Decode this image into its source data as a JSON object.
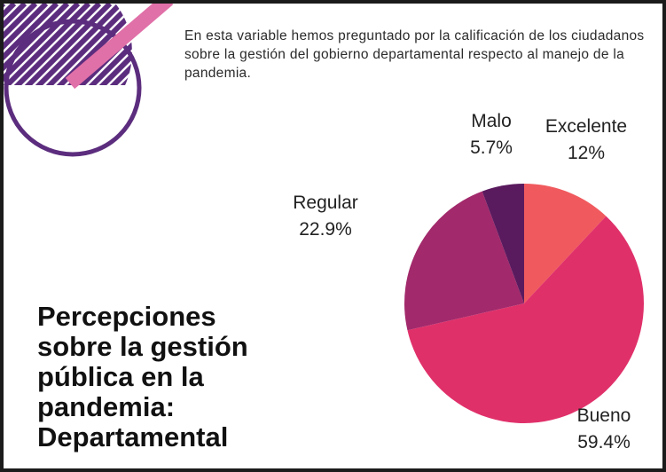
{
  "intro_text": "En esta variable hemos preguntado por la calificación de los ciudadanos sobre la gestión del gobierno departamental respecto al manejo de la pandemia.",
  "title_lines": [
    "Percepciones",
    "sobre la gestión",
    "pública en la",
    "pandemia:",
    "Departamental"
  ],
  "colors": {
    "excelente": "#f05a5e",
    "bueno": "#e0306a",
    "regular": "#a2296b",
    "malo": "#5a1a5e",
    "decor_purple": "#5c2d7e",
    "decor_pink": "#e070a8"
  },
  "chart_data": {
    "type": "pie",
    "title": "Percepciones sobre la gestión pública en la pandemia: Departamental",
    "slices": [
      {
        "name": "Excelente",
        "value": 12,
        "label": "12%"
      },
      {
        "name": "Bueno",
        "value": 59.4,
        "label": "59.4%"
      },
      {
        "name": "Regular",
        "value": 22.9,
        "label": "22.9%"
      },
      {
        "name": "Malo",
        "value": 5.7,
        "label": "5.7%"
      }
    ]
  }
}
